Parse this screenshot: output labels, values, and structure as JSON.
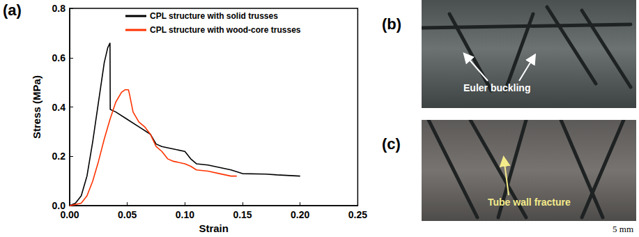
{
  "chart_data": {
    "type": "line",
    "panel_label": "(a)",
    "x_label": "Strain",
    "y_label": "Stress (MPa)",
    "xlim": [
      0,
      0.25
    ],
    "ylim": [
      0,
      0.8
    ],
    "xticks": [
      {
        "value": 0,
        "label": "0.00"
      },
      {
        "value": 0.05,
        "label": "0.05"
      },
      {
        "value": 0.1,
        "label": "0.10"
      },
      {
        "value": 0.15,
        "label": "0.15"
      },
      {
        "value": 0.2,
        "label": "0.20"
      },
      {
        "value": 0.25,
        "label": "0.25"
      }
    ],
    "yticks": [
      {
        "value": 0,
        "label": "0.0"
      },
      {
        "value": 0.2,
        "label": "0.2"
      },
      {
        "value": 0.4,
        "label": "0.4"
      },
      {
        "value": 0.6,
        "label": "0.6"
      },
      {
        "value": 0.8,
        "label": "0.8"
      }
    ],
    "grid": false,
    "legend": "upper left",
    "marker": "none",
    "line_style": "solid",
    "series": [
      {
        "name": "CPL structure with solid trusses",
        "color": "#000000",
        "x": [
          0,
          0.005,
          0.01,
          0.015,
          0.02,
          0.025,
          0.03,
          0.033,
          0.035,
          0.0352,
          0.04,
          0.05,
          0.06,
          0.07,
          0.075,
          0.08,
          0.09,
          0.1,
          0.105,
          0.11,
          0.12,
          0.13,
          0.14,
          0.15,
          0.17,
          0.18,
          0.2
        ],
        "values": [
          0,
          0.01,
          0.04,
          0.12,
          0.26,
          0.42,
          0.58,
          0.64,
          0.66,
          0.39,
          0.38,
          0.35,
          0.32,
          0.29,
          0.25,
          0.24,
          0.23,
          0.22,
          0.19,
          0.17,
          0.165,
          0.155,
          0.145,
          0.13,
          0.128,
          0.125,
          0.12
        ]
      },
      {
        "name": "CPL structure with wood-core trusses",
        "color": "#ff3300",
        "x": [
          0,
          0.01,
          0.015,
          0.02,
          0.025,
          0.03,
          0.035,
          0.04,
          0.045,
          0.048,
          0.051,
          0.052,
          0.055,
          0.06,
          0.065,
          0.07,
          0.075,
          0.08,
          0.085,
          0.09,
          0.1,
          0.105,
          0.11,
          0.12,
          0.13,
          0.14,
          0.145
        ],
        "values": [
          0,
          0.01,
          0.04,
          0.1,
          0.18,
          0.27,
          0.35,
          0.42,
          0.46,
          0.47,
          0.47,
          0.45,
          0.38,
          0.34,
          0.32,
          0.29,
          0.24,
          0.22,
          0.19,
          0.18,
          0.17,
          0.16,
          0.145,
          0.14,
          0.13,
          0.12,
          0.12
        ]
      }
    ]
  },
  "photos": [
    {
      "panel_label": "(b)",
      "annotation": "Euler buckling"
    },
    {
      "panel_label": "(c)",
      "annotation": "Tube wall fracture"
    }
  ],
  "scale_bar": "5 mm"
}
